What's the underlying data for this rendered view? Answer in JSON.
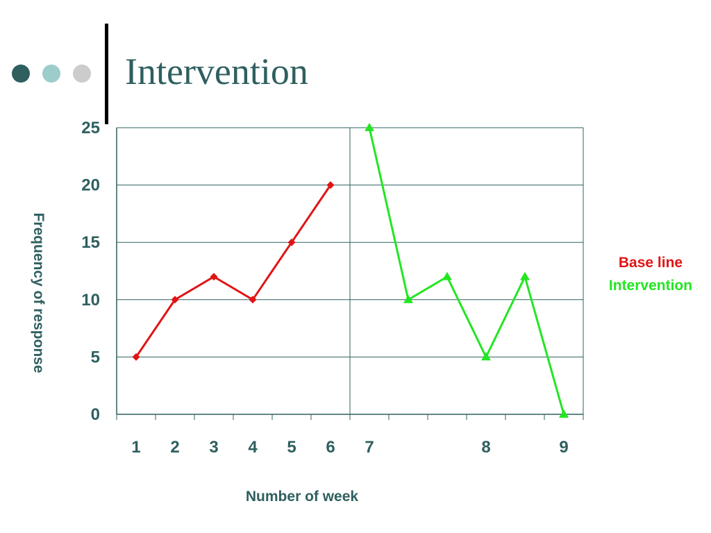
{
  "title": "Intervention",
  "colors": {
    "text": "#2F5F5F",
    "dots": [
      "#2F5F5F",
      "#9CCCCC",
      "#CCCCCC"
    ],
    "baseline": "#E01414",
    "intervention": "#22E622",
    "axis": "#2F5F5F",
    "grid": "#2F5F5F"
  },
  "chart_data": {
    "type": "line",
    "title": "",
    "xlabel": "Number of week",
    "ylabel": "Frequency of response",
    "ylim": [
      0,
      25
    ],
    "yticks": [
      0,
      5,
      10,
      15,
      20,
      25
    ],
    "grid": true,
    "legend_placement": "right",
    "x_tick_labels": [
      "1",
      "2",
      "3",
      "4",
      "5",
      "6",
      "7",
      "8",
      "9"
    ],
    "phase_line_after": "6",
    "series": [
      {
        "name": "Base line",
        "color": "#E01414",
        "marker": "diamond",
        "x": [
          "1",
          "2",
          "3",
          "4",
          "5",
          "6"
        ],
        "values": [
          5,
          10,
          12,
          10,
          15,
          20
        ]
      },
      {
        "name": "Intervention",
        "color": "#22E622",
        "marker": "triangle",
        "x": [
          "7",
          "",
          "",
          "8",
          "",
          "9"
        ],
        "values": [
          25,
          10,
          12,
          5,
          12,
          0
        ]
      }
    ]
  }
}
